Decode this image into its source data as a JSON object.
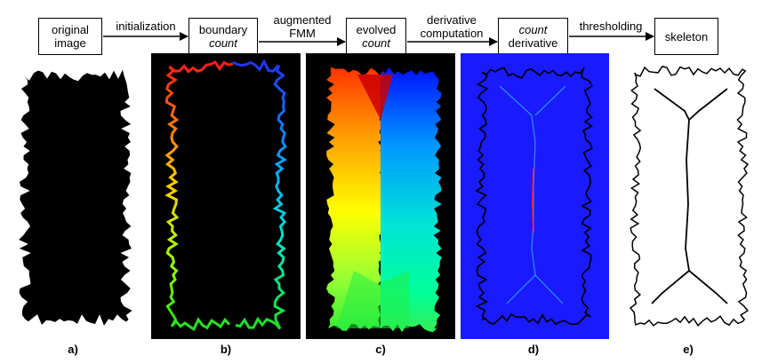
{
  "steps": [
    {
      "line1": "original",
      "line2": "image",
      "line2_italic": false,
      "line1_italic": false
    },
    {
      "line1": "boundary",
      "line2": "count",
      "line2_italic": true,
      "line1_italic": false
    },
    {
      "line1": "evolved",
      "line2": "count",
      "line2_italic": true,
      "line1_italic": false
    },
    {
      "line1": "count",
      "line2": "derivative",
      "line1_italic": true,
      "line2_italic": false
    },
    {
      "line1": "skeleton",
      "line2": "",
      "line1_italic": false,
      "line2_italic": false
    }
  ],
  "edges": [
    {
      "line1": "initialization",
      "line2": ""
    },
    {
      "line1": "augmented",
      "line2": "FMM"
    },
    {
      "line1": "derivative",
      "line2": "computation"
    },
    {
      "line1": "thresholding",
      "line2": ""
    }
  ],
  "panels": [
    {
      "caption": "a)",
      "content": "black silhouette of original shape",
      "background": "#ffffff"
    },
    {
      "caption": "b)",
      "content": "boundary count colored red-blue-cyan-green-yellow",
      "background": "#000000"
    },
    {
      "caption": "c)",
      "content": "evolved count color field",
      "background": "#000000"
    },
    {
      "caption": "d)",
      "content": "count derivative map",
      "background": "#1a1aff"
    },
    {
      "caption": "e)",
      "content": "thresholded skeleton",
      "background": "#ffffff"
    }
  ],
  "colors": {
    "ink": "#000000",
    "derivative_bg": "#1a1aff",
    "derivative_ridge": "#ff2a2a",
    "derivative_branch": "#33e0ff"
  }
}
